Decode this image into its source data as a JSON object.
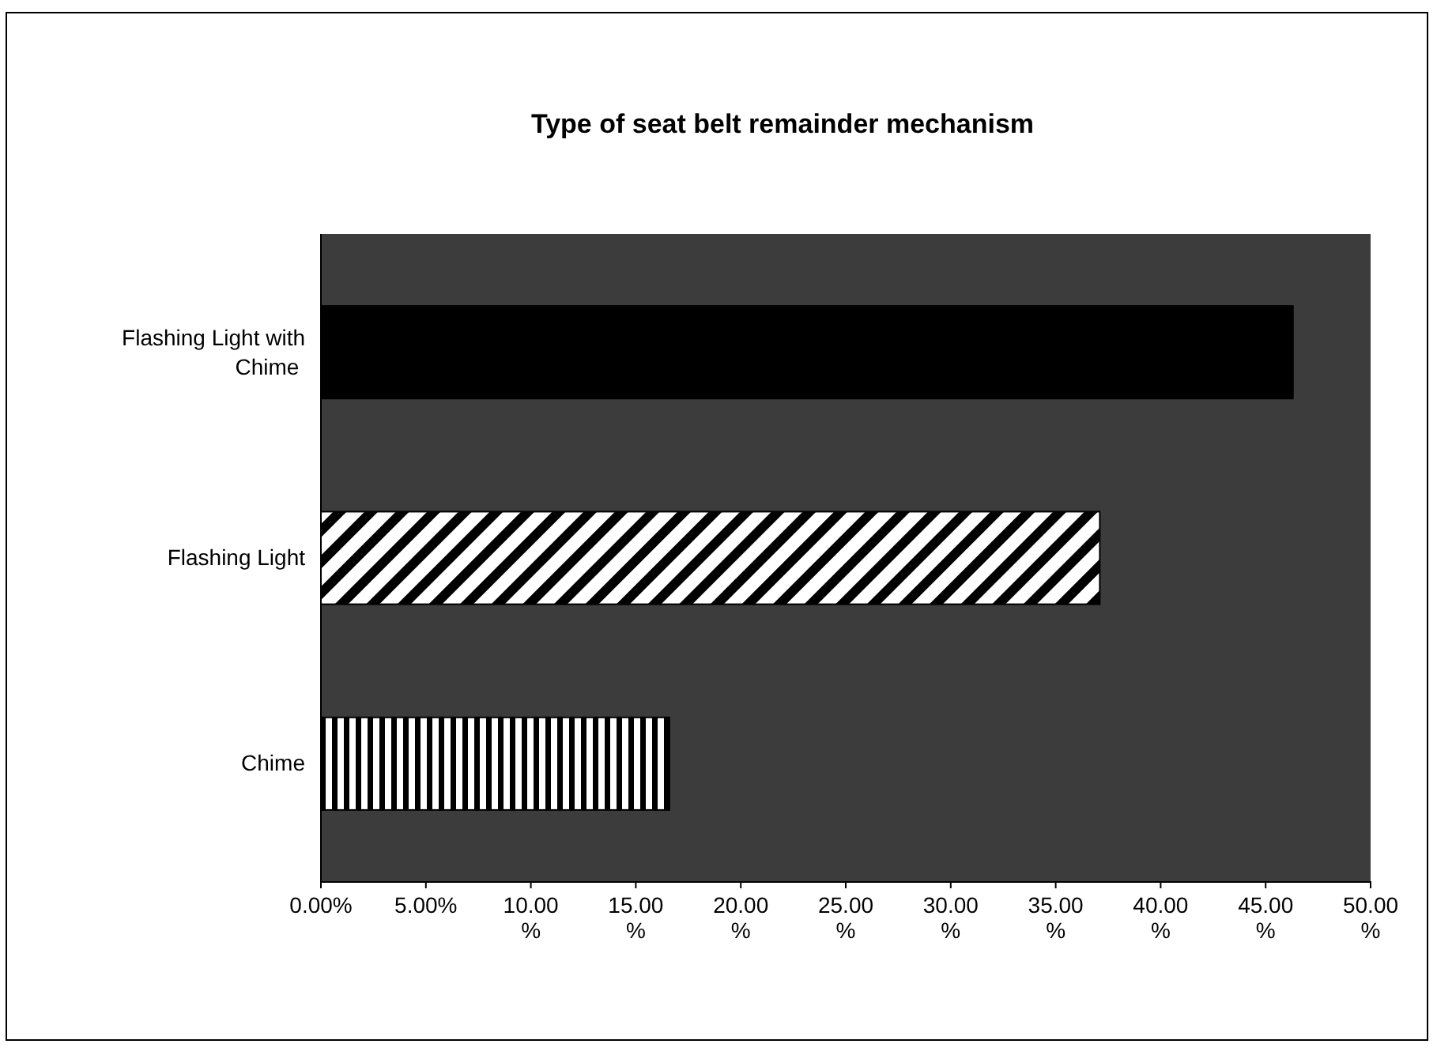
{
  "chart_data": {
    "type": "bar",
    "orientation": "horizontal",
    "title": "Type of seat belt remainder mechanism",
    "categories": [
      "Flashing Light with Chime",
      "Flashing Light",
      "Chime"
    ],
    "values": [
      46.3,
      37.1,
      16.6
    ],
    "colors": [
      "#000000",
      "#000000",
      "#000000"
    ],
    "xlim": [
      0,
      50
    ],
    "xticks": [
      {
        "value": 0,
        "label": "0.00%"
      },
      {
        "value": 5,
        "label": "5.00%"
      },
      {
        "value": 10,
        "label": "10.00%"
      },
      {
        "value": 15,
        "label": "15.00%"
      },
      {
        "value": 20,
        "label": "20.00%"
      },
      {
        "value": 25,
        "label": "25.00%"
      },
      {
        "value": 30,
        "label": "30.00%"
      },
      {
        "value": 35,
        "label": "35.00%"
      },
      {
        "value": 40,
        "label": "40.00%"
      },
      {
        "value": 45,
        "label": "45.00%"
      },
      {
        "value": 50,
        "label": "50.00%"
      }
    ],
    "grid": false
  }
}
